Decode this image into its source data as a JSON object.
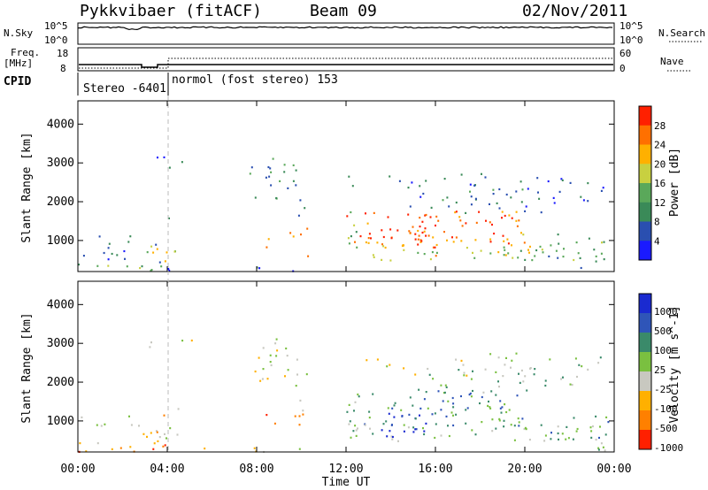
{
  "header": {
    "station": "Pykkvibaer (fitACF)",
    "beam": "Beam 09",
    "date": "02/Nov/2011"
  },
  "strips": {
    "nsky_label": "N.Sky",
    "nsearch_label": "N.Search",
    "nsky_ticks": [
      "10^5",
      "10^0"
    ],
    "nsearch_ticks": [
      "10^5",
      "10^0"
    ],
    "freq_label_1": "Freq.",
    "freq_label_2": "[MHz]",
    "freq_ticks": [
      "18",
      "8"
    ],
    "nave_label": "Nave",
    "nave_ticks": [
      "60",
      "0"
    ],
    "cpid_label": "CPID",
    "cpid_segments": [
      "Stereo -6401",
      "normol (fost stereo) 153"
    ]
  },
  "colors": {
    "power": [
      "#1a1aff",
      "#2a4fb0",
      "#3a8a58",
      "#5aa85a",
      "#c8d040",
      "#ffb000",
      "#ff7000",
      "#ff2000"
    ],
    "velocity": [
      "#1a2ad0",
      "#2f55b8",
      "#3a8a6a",
      "#7ac040",
      "#c8c8c0",
      "#ffb000",
      "#ff8000",
      "#ff2000"
    ]
  },
  "chart_data": [
    {
      "type": "heatmap",
      "title": "",
      "ylabel": "Slant Range [km]",
      "xlabel": "",
      "ylim": [
        200,
        4600
      ],
      "yticks": [
        "1000",
        "2000",
        "3000",
        "4000"
      ],
      "xticks": [
        "00:00",
        "04:00",
        "08:00",
        "12:00",
        "16:00",
        "20:00",
        "00:00"
      ],
      "colorbar_label": "Power [dB]",
      "colorbar_ticks": [
        "4",
        "8",
        "12",
        "16",
        "20",
        "24",
        "28"
      ],
      "mode_change_time": "04:00"
    },
    {
      "type": "heatmap",
      "title": "",
      "ylabel": "Slant Range [km]",
      "xlabel": "Time UT",
      "ylim": [
        200,
        4600
      ],
      "yticks": [
        "1000",
        "2000",
        "3000",
        "4000"
      ],
      "xticks": [
        "00:00",
        "04:00",
        "08:00",
        "12:00",
        "16:00",
        "20:00",
        "00:00"
      ],
      "colorbar_label": "Velocity [m s^-1]",
      "colorbar_ticks": [
        "1000",
        "500",
        "100",
        "25",
        "-25",
        "-100",
        "-500",
        "-1000"
      ],
      "mode_change_time": "04:00"
    }
  ]
}
